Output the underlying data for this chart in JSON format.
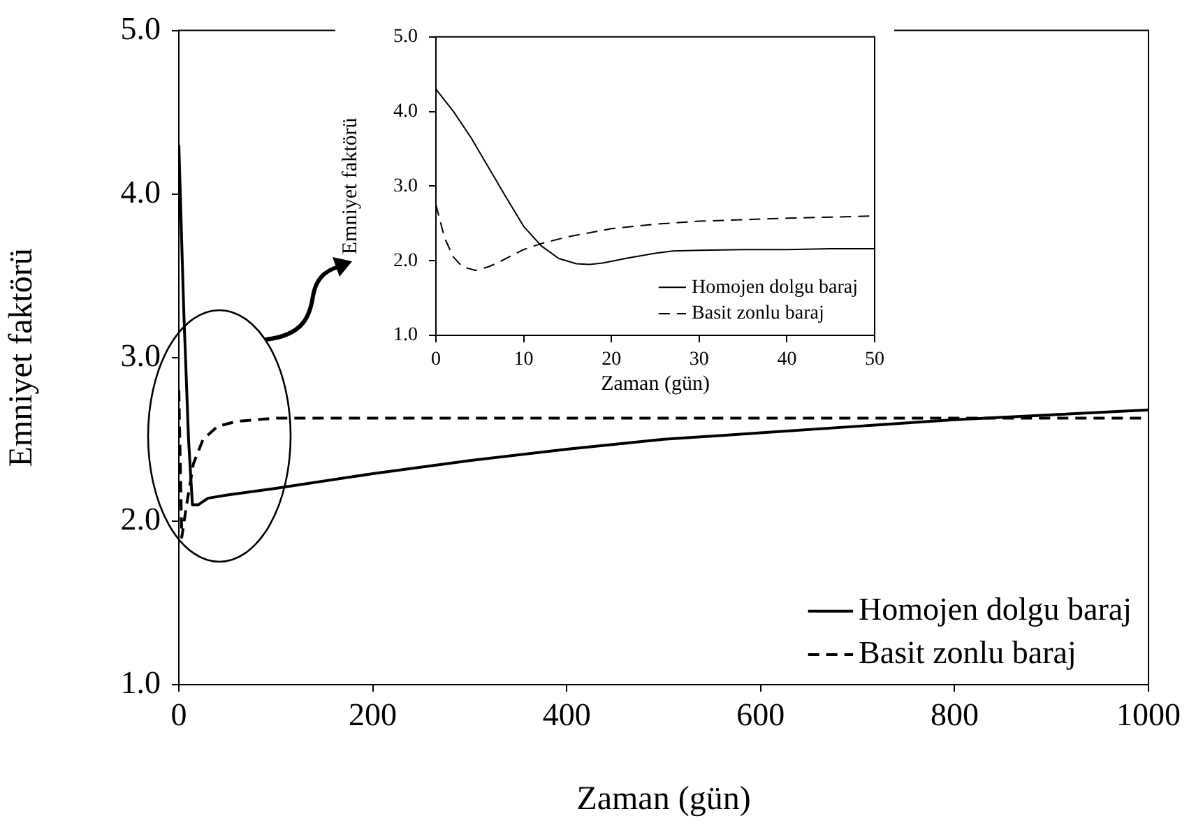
{
  "chart_data": [
    {
      "type": "line",
      "xlabel": "Zaman (gün)",
      "ylabel": "Emniyet faktörü",
      "xlim": [
        0,
        1000
      ],
      "xticks": [
        0,
        200,
        400,
        600,
        800,
        1000
      ],
      "ylim": [
        1,
        5
      ],
      "yticks": [
        {
          "value": 1,
          "label": "1.0"
        },
        {
          "value": 2,
          "label": "2.0"
        },
        {
          "value": 3,
          "label": "3.0"
        },
        {
          "value": 4,
          "label": "4.0"
        },
        {
          "value": 5,
          "label": "5.0"
        }
      ],
      "grid": false,
      "legend": "bottom right",
      "marker": "none",
      "series": [
        {
          "name": "Homojen dolgu baraj",
          "color": "#000000",
          "line_style": "solid",
          "x": [
            0,
            5,
            10,
            14,
            20,
            30,
            50,
            100,
            200,
            300,
            400,
            500,
            600,
            700,
            800,
            900,
            1000
          ],
          "values": [
            4.3,
            3.3,
            2.5,
            2.1,
            2.1,
            2.14,
            2.16,
            2.2,
            2.29,
            2.37,
            2.44,
            2.5,
            2.54,
            2.58,
            2.62,
            2.65,
            2.68
          ]
        },
        {
          "name": "Basit zonlu baraj",
          "color": "#000000",
          "line_style": "dashed",
          "x": [
            0,
            3,
            8,
            15,
            25,
            40,
            60,
            100,
            300,
            600,
            1000
          ],
          "values": [
            2.8,
            1.9,
            2.1,
            2.35,
            2.5,
            2.58,
            2.61,
            2.63,
            2.63,
            2.63,
            2.63
          ]
        }
      ]
    },
    {
      "type": "line",
      "xlabel": "Zaman (gün)",
      "ylabel": "Emniyet faktörü",
      "xlim": [
        0,
        50
      ],
      "xticks": [
        0,
        10,
        20,
        30,
        40,
        50
      ],
      "ylim": [
        1,
        5
      ],
      "yticks": [
        {
          "value": 1,
          "label": "1.0"
        },
        {
          "value": 2,
          "label": "2.0"
        },
        {
          "value": 3,
          "label": "3.0"
        },
        {
          "value": 4,
          "label": "4.0"
        },
        {
          "value": 5,
          "label": "5.0"
        }
      ],
      "grid": false,
      "legend": "bottom right",
      "marker": "none",
      "series": [
        {
          "name": "Homojen dolgu baraj",
          "color": "#000000",
          "line_style": "solid",
          "x": [
            0,
            2,
            4,
            6,
            8,
            10,
            12,
            14,
            16,
            17.5,
            19,
            22,
            25,
            27,
            30,
            35,
            40,
            45,
            50
          ],
          "values": [
            4.3,
            4.0,
            3.65,
            3.25,
            2.85,
            2.46,
            2.2,
            2.03,
            1.96,
            1.95,
            1.97,
            2.04,
            2.1,
            2.13,
            2.14,
            2.15,
            2.15,
            2.16,
            2.16
          ]
        },
        {
          "name": "Basit zonlu baraj",
          "color": "#000000",
          "line_style": "dashed",
          "x": [
            0,
            1,
            2,
            3,
            4.5,
            6,
            7,
            10,
            12,
            15,
            20,
            25,
            30,
            40,
            50
          ],
          "values": [
            2.75,
            2.3,
            2.05,
            1.92,
            1.87,
            1.92,
            1.97,
            2.15,
            2.23,
            2.32,
            2.43,
            2.49,
            2.53,
            2.57,
            2.6
          ]
        }
      ]
    }
  ]
}
